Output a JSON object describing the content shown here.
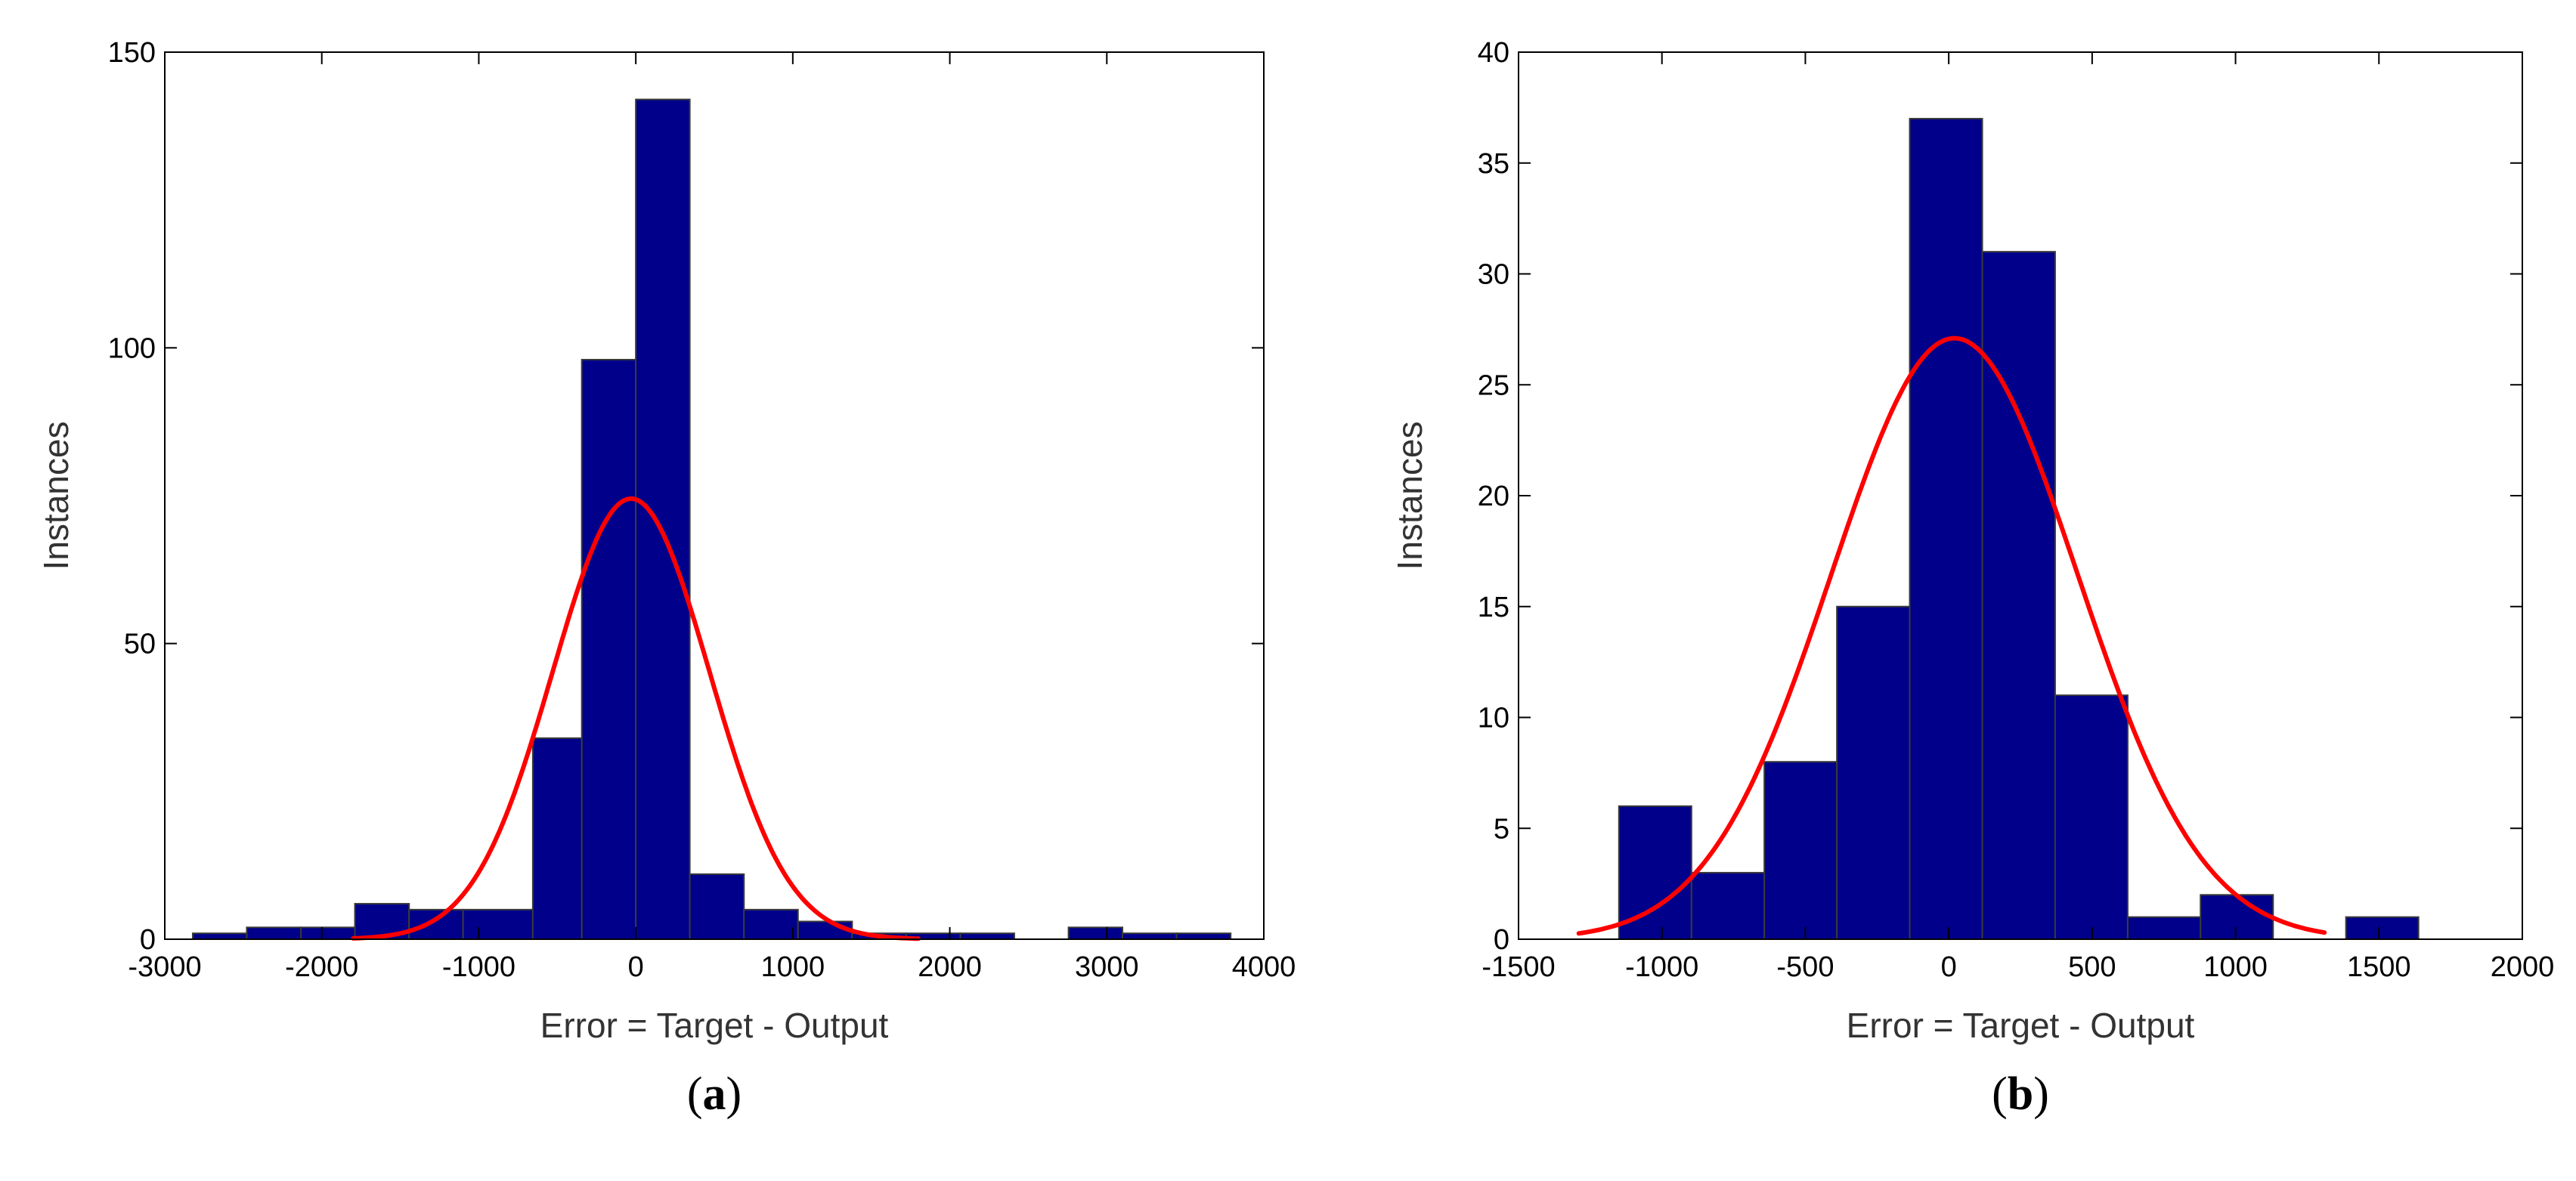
{
  "chart_data": [
    {
      "type": "bar",
      "panel_label": "a",
      "xlabel": "Error = Target - Output",
      "ylabel": "Instances",
      "xlim": [
        -3000,
        4000
      ],
      "ylim": [
        0,
        150
      ],
      "xticks": [
        -3000,
        -2000,
        -1000,
        0,
        1000,
        2000,
        3000,
        4000
      ],
      "yticks": [
        0,
        50,
        100,
        150
      ],
      "bar_color": "#00008b",
      "curve_color": "#ff0000",
      "bins": [
        {
          "x0": -2822,
          "x1": -2478,
          "count": 1
        },
        {
          "x0": -2478,
          "x1": -2133,
          "count": 2
        },
        {
          "x0": -2133,
          "x1": -1789,
          "count": 2
        },
        {
          "x0": -1789,
          "x1": -1444,
          "count": 6
        },
        {
          "x0": -1444,
          "x1": -1100,
          "count": 5
        },
        {
          "x0": -1100,
          "x1": -656,
          "count": 5
        },
        {
          "x0": -656,
          "x1": -344,
          "count": 34
        },
        {
          "x0": -344,
          "x1": 0,
          "count": 98
        },
        {
          "x0": 0,
          "x1": 344,
          "count": 142
        },
        {
          "x0": 344,
          "x1": 689,
          "count": 11
        },
        {
          "x0": 689,
          "x1": 1033,
          "count": 5
        },
        {
          "x0": 1033,
          "x1": 1378,
          "count": 3
        },
        {
          "x0": 1378,
          "x1": 1722,
          "count": 1
        },
        {
          "x0": 1722,
          "x1": 2067,
          "count": 1
        },
        {
          "x0": 2067,
          "x1": 2411,
          "count": 1
        },
        {
          "x0": 2411,
          "x1": 2756,
          "count": 0
        },
        {
          "x0": 2756,
          "x1": 3100,
          "count": 2
        },
        {
          "x0": 3100,
          "x1": 3444,
          "count": 1
        },
        {
          "x0": 3444,
          "x1": 3789,
          "count": 1
        }
      ],
      "fit_curve": {
        "type": "normal",
        "mean": -30,
        "sd": 500,
        "peak": 74.5,
        "x_range": [
          -1800,
          1800
        ]
      }
    },
    {
      "type": "bar",
      "panel_label": "b",
      "xlabel": "Error = Target - Output",
      "ylabel": "Instances",
      "xlim": [
        -1500,
        2000
      ],
      "ylim": [
        0,
        40
      ],
      "xticks": [
        -1500,
        -1000,
        -500,
        0,
        500,
        1000,
        1500,
        2000
      ],
      "yticks": [
        0,
        5,
        10,
        15,
        20,
        25,
        30,
        35,
        40
      ],
      "bar_color": "#00008b",
      "curve_color": "#ff0000",
      "bins": [
        {
          "x0": -1150,
          "x1": -897,
          "count": 6
        },
        {
          "x0": -897,
          "x1": -643,
          "count": 3
        },
        {
          "x0": -643,
          "x1": -390,
          "count": 8
        },
        {
          "x0": -390,
          "x1": -136,
          "count": 15
        },
        {
          "x0": -136,
          "x1": 117,
          "count": 37
        },
        {
          "x0": 117,
          "x1": 371,
          "count": 31
        },
        {
          "x0": 371,
          "x1": 624,
          "count": 11
        },
        {
          "x0": 624,
          "x1": 878,
          "count": 1
        },
        {
          "x0": 878,
          "x1": 1131,
          "count": 2
        },
        {
          "x0": 1131,
          "x1": 1385,
          "count": 0
        },
        {
          "x0": 1385,
          "x1": 1638,
          "count": 1
        }
      ],
      "fit_curve": {
        "type": "normal",
        "mean": 20,
        "sd": 430,
        "peak": 27.1,
        "x_range": [
          -1290,
          1310
        ]
      }
    }
  ]
}
